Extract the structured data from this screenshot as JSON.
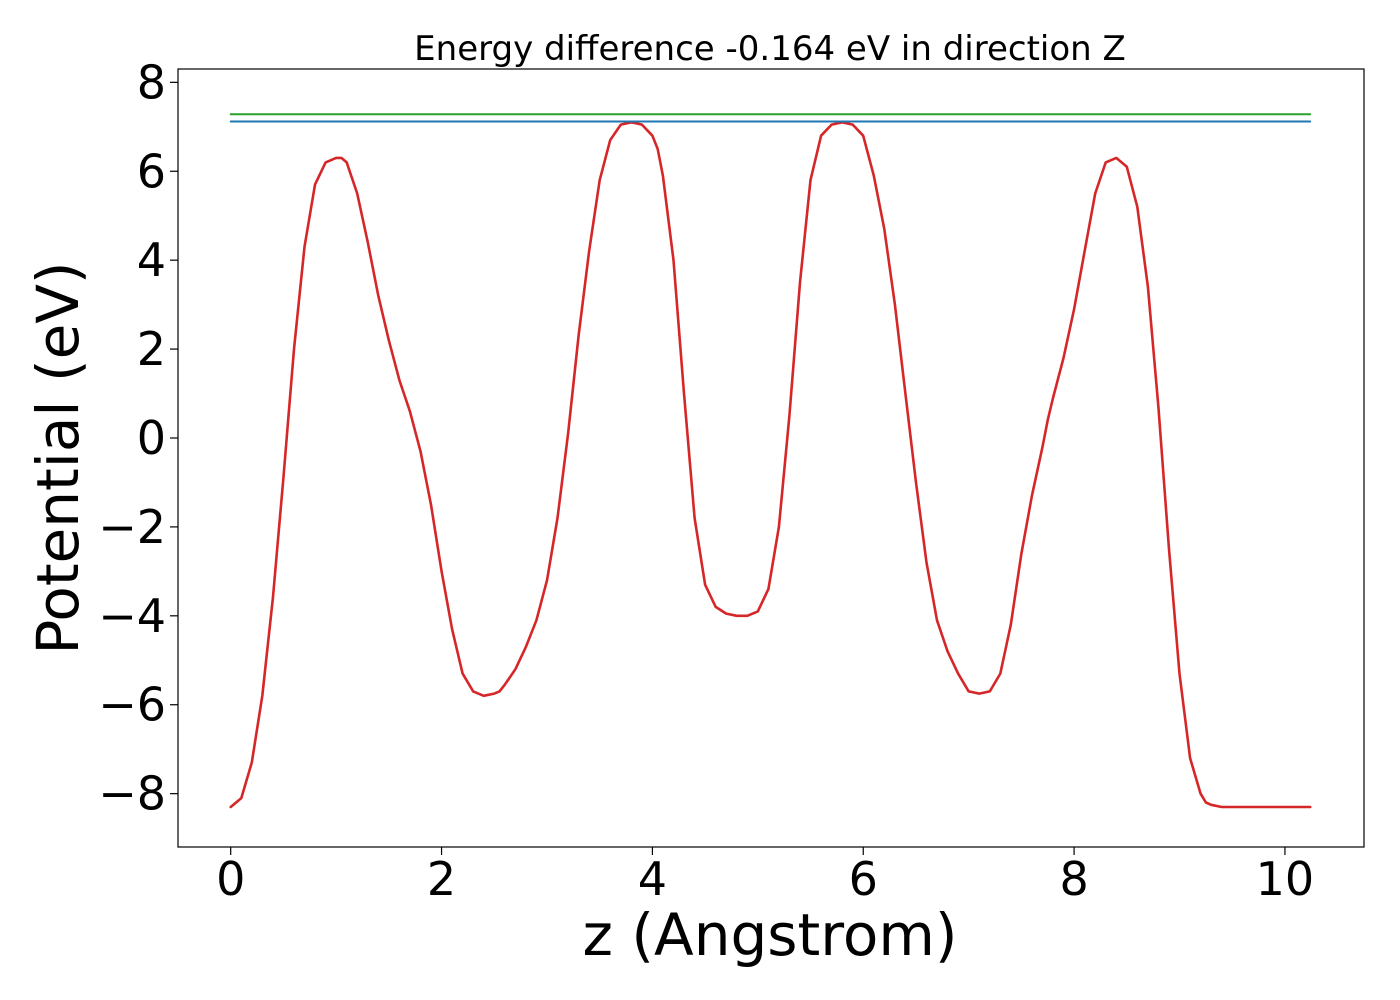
{
  "chart_data": {
    "type": "line",
    "title": "Energy difference -0.164 eV in direction Z",
    "xlabel": "z (Angstrom)",
    "ylabel": "Potential (eV)",
    "xlim": [
      -0.5,
      10.75
    ],
    "ylim": [
      -9.2,
      8.3
    ],
    "xticks": [
      0,
      2,
      4,
      6,
      8,
      10
    ],
    "yticks": [
      -8,
      -6,
      -4,
      -2,
      0,
      2,
      4,
      6,
      8
    ],
    "xtick_labels": [
      "0",
      "2",
      "4",
      "6",
      "8",
      "10"
    ],
    "ytick_labels": [
      "−8",
      "−6",
      "−4",
      "−2",
      "0",
      "2",
      "4",
      "6",
      "8"
    ],
    "grid": false,
    "series": [
      {
        "color": "#d62728",
        "x": [
          0.0,
          0.1,
          0.2,
          0.3,
          0.4,
          0.5,
          0.6,
          0.7,
          0.8,
          0.9,
          1.0,
          1.05,
          1.1,
          1.2,
          1.3,
          1.4,
          1.5,
          1.6,
          1.7,
          1.8,
          1.9,
          2.0,
          2.1,
          2.2,
          2.3,
          2.4,
          2.5,
          2.55,
          2.6,
          2.7,
          2.8,
          2.9,
          3.0,
          3.1,
          3.2,
          3.3,
          3.4,
          3.5,
          3.6,
          3.7,
          3.8,
          3.9,
          4.0,
          4.05,
          4.1,
          4.2,
          4.3,
          4.4,
          4.5,
          4.6,
          4.7,
          4.8,
          4.9,
          5.0,
          5.1,
          5.2,
          5.3,
          5.4,
          5.5,
          5.6,
          5.7,
          5.8,
          5.9,
          6.0,
          6.1,
          6.2,
          6.3,
          6.4,
          6.5,
          6.6,
          6.7,
          6.8,
          6.9,
          7.0,
          7.1,
          7.2,
          7.3,
          7.4,
          7.5,
          7.6,
          7.7,
          7.75,
          7.8,
          7.9,
          8.0,
          8.1,
          8.2,
          8.3,
          8.4,
          8.5,
          8.6,
          8.7,
          8.8,
          8.9,
          9.0,
          9.1,
          9.2,
          9.25,
          9.3,
          9.4,
          9.5,
          9.6,
          9.7,
          9.8,
          9.9,
          10.0,
          10.1,
          10.2,
          10.24
        ],
        "y": [
          -8.3,
          -8.1,
          -7.3,
          -5.8,
          -3.6,
          -0.9,
          2.0,
          4.3,
          5.7,
          6.2,
          6.3,
          6.3,
          6.2,
          5.5,
          4.4,
          3.2,
          2.2,
          1.3,
          0.6,
          -0.3,
          -1.5,
          -3.0,
          -4.3,
          -5.3,
          -5.7,
          -5.8,
          -5.75,
          -5.7,
          -5.55,
          -5.2,
          -4.7,
          -4.1,
          -3.2,
          -1.8,
          0.1,
          2.3,
          4.2,
          5.8,
          6.7,
          7.05,
          7.1,
          7.05,
          6.8,
          6.5,
          5.9,
          4.0,
          1.0,
          -1.8,
          -3.3,
          -3.8,
          -3.95,
          -4.0,
          -4.0,
          -3.9,
          -3.4,
          -2.0,
          0.5,
          3.5,
          5.8,
          6.8,
          7.05,
          7.1,
          7.05,
          6.8,
          5.9,
          4.7,
          3.0,
          1.0,
          -1.0,
          -2.8,
          -4.1,
          -4.8,
          -5.3,
          -5.7,
          -5.75,
          -5.7,
          -5.3,
          -4.2,
          -2.6,
          -1.3,
          -0.2,
          0.4,
          0.9,
          1.8,
          2.9,
          4.2,
          5.5,
          6.2,
          6.3,
          6.1,
          5.2,
          3.4,
          0.7,
          -2.5,
          -5.3,
          -7.2,
          -8.0,
          -8.2,
          -8.25,
          -8.3,
          -8.3,
          -8.3,
          -8.3,
          -8.3,
          -8.3,
          -8.3,
          -8.3,
          -8.3,
          -8.3
        ]
      },
      {
        "color": "#1f77b4",
        "x": [
          0.0,
          10.24
        ],
        "y": [
          7.12,
          7.12
        ]
      },
      {
        "color": "#2ca02c",
        "x": [
          0.0,
          10.24
        ],
        "y": [
          7.28,
          7.28
        ]
      }
    ]
  }
}
